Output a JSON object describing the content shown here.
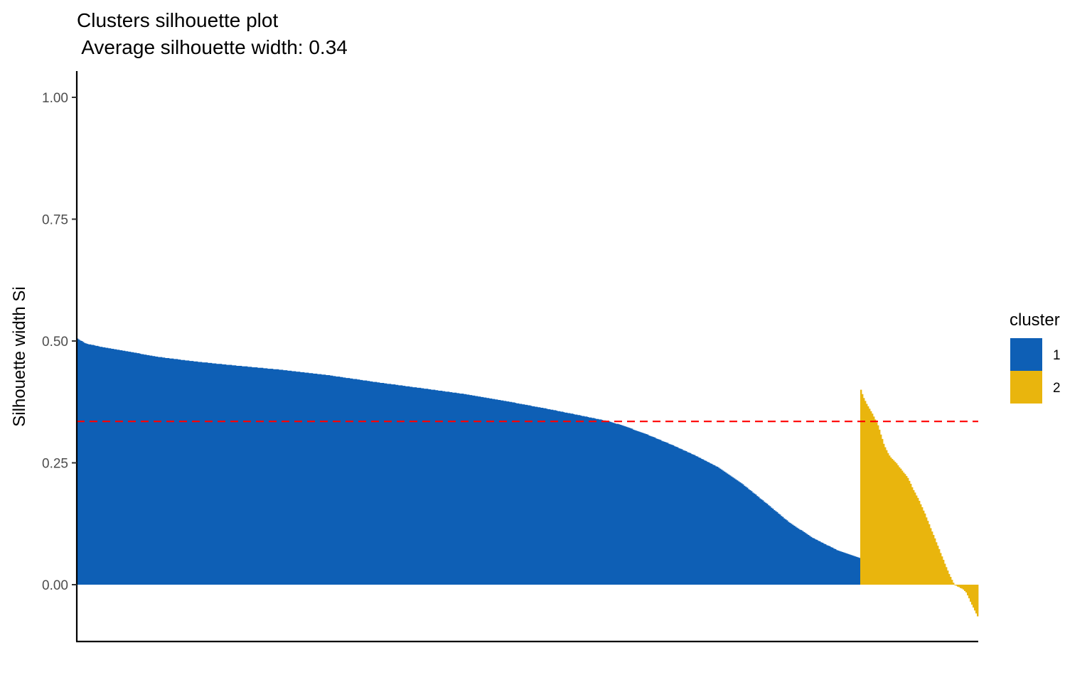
{
  "chart_data": {
    "type": "bar",
    "title": "Clusters silhouette plot",
    "subtitle": " Average silhouette width: 0.34",
    "xlabel": "",
    "ylabel": "Silhouette width Si",
    "ylim": [
      -0.12,
      1.05
    ],
    "yticks": [
      0.0,
      0.25,
      0.5,
      0.75,
      1.0
    ],
    "ytick_labels": [
      "0.00",
      "0.25",
      "0.50",
      "0.75",
      "1.00"
    ],
    "average_silhouette_width": 0.335,
    "reference_line_color": "#ff0000",
    "grid": false,
    "legend_position": "right",
    "legend_title": "cluster",
    "series": [
      {
        "name": "1",
        "color": "#0e5fb5",
        "profile": [
          [
            0,
            0.505
          ],
          [
            0.01,
            0.495
          ],
          [
            0.03,
            0.488
          ],
          [
            0.06,
            0.48
          ],
          [
            0.1,
            0.468
          ],
          [
            0.15,
            0.458
          ],
          [
            0.2,
            0.45
          ],
          [
            0.26,
            0.441
          ],
          [
            0.32,
            0.43
          ],
          [
            0.38,
            0.416
          ],
          [
            0.45,
            0.401
          ],
          [
            0.5,
            0.39
          ],
          [
            0.55,
            0.376
          ],
          [
            0.6,
            0.361
          ],
          [
            0.65,
            0.345
          ],
          [
            0.68,
            0.335
          ],
          [
            0.7,
            0.325
          ],
          [
            0.73,
            0.307
          ],
          [
            0.76,
            0.287
          ],
          [
            0.79,
            0.265
          ],
          [
            0.82,
            0.24
          ],
          [
            0.85,
            0.207
          ],
          [
            0.88,
            0.168
          ],
          [
            0.91,
            0.128
          ],
          [
            0.94,
            0.096
          ],
          [
            0.97,
            0.072
          ],
          [
            0.99,
            0.06
          ],
          [
            1.0,
            0.055
          ]
        ]
      },
      {
        "name": "2",
        "color": "#e9b50d",
        "profile": [
          [
            0,
            0.4
          ],
          [
            0.02,
            0.385
          ],
          [
            0.05,
            0.37
          ],
          [
            0.1,
            0.35
          ],
          [
            0.15,
            0.325
          ],
          [
            0.2,
            0.285
          ],
          [
            0.25,
            0.262
          ],
          [
            0.3,
            0.25
          ],
          [
            0.35,
            0.235
          ],
          [
            0.4,
            0.22
          ],
          [
            0.45,
            0.195
          ],
          [
            0.5,
            0.172
          ],
          [
            0.55,
            0.145
          ],
          [
            0.6,
            0.115
          ],
          [
            0.65,
            0.085
          ],
          [
            0.7,
            0.055
          ],
          [
            0.75,
            0.025
          ],
          [
            0.78,
            0.01
          ],
          [
            0.8,
            0.0
          ],
          [
            0.84,
            -0.005
          ],
          [
            0.88,
            -0.01
          ],
          [
            0.9,
            -0.015
          ],
          [
            0.93,
            -0.03
          ],
          [
            0.96,
            -0.045
          ],
          [
            1.0,
            -0.065
          ]
        ]
      }
    ]
  }
}
